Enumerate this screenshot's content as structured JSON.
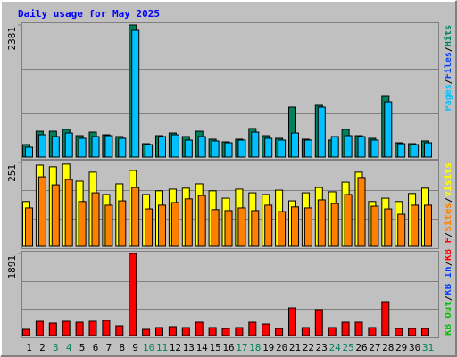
{
  "title": "Daily usage for May 2025",
  "legend_separator": "/",
  "chart_data": [
    {
      "type": "bar",
      "ylim": [
        0,
        2381
      ],
      "yticks": [
        2381
      ],
      "series": [
        {
          "name": "Hits",
          "color": "#00805c",
          "values": [
            225,
            466,
            466,
            500,
            386,
            450,
            402,
            370,
            2381,
            241,
            386,
            434,
            370,
            466,
            322,
            274,
            322,
            515,
            386,
            338,
            901,
            322,
            933,
            306,
            500,
            386,
            338,
            1094,
            257,
            241,
            290
          ]
        },
        {
          "name": "Files",
          "color": "#0040ff",
          "values": [
            null,
            null,
            null,
            null,
            null,
            null,
            null,
            null,
            null,
            null,
            null,
            null,
            null,
            null,
            null,
            null,
            null,
            null,
            null,
            null,
            null,
            null,
            null,
            null,
            null,
            null,
            null,
            null,
            null,
            null,
            null
          ]
        },
        {
          "name": "Pages",
          "color": "#00c0ff",
          "values": [
            177,
            402,
            370,
            434,
            338,
            370,
            386,
            338,
            2284,
            225,
            370,
            402,
            306,
            370,
            290,
            257,
            306,
            450,
            338,
            306,
            434,
            306,
            901,
            370,
            386,
            370,
            306,
            997,
            241,
            225,
            257
          ]
        }
      ]
    },
    {
      "type": "bar",
      "ylim": [
        0,
        251
      ],
      "yticks": [
        251
      ],
      "series": [
        {
          "name": "Visits",
          "color": "#ffff00",
          "values": [
            134,
            243,
            238,
            246,
            195,
            222,
            155,
            187,
            227,
            155,
            166,
            171,
            174,
            187,
            166,
            144,
            171,
            160,
            155,
            168,
            136,
            160,
            176,
            163,
            192,
            222,
            134,
            144,
            134,
            158,
            174
          ]
        },
        {
          "name": "Sites",
          "color": "#ff8000",
          "values": [
            115,
            208,
            184,
            200,
            134,
            160,
            123,
            136,
            176,
            112,
            123,
            131,
            142,
            152,
            110,
            107,
            115,
            107,
            123,
            104,
            118,
            115,
            139,
            128,
            155,
            206,
            120,
            112,
            96,
            123,
            123
          ]
        }
      ]
    },
    {
      "type": "bar",
      "ylim": [
        0,
        1891
      ],
      "yticks": [
        1891
      ],
      "categories": [
        "1",
        "2",
        "3",
        "4",
        "5",
        "6",
        "7",
        "8",
        "9",
        "10",
        "11",
        "12",
        "13",
        "14",
        "15",
        "16",
        "17",
        "18",
        "19",
        "20",
        "21",
        "22",
        "23",
        "24",
        "25",
        "26",
        "27",
        "28",
        "29",
        "30",
        "31"
      ],
      "category_colors": [
        "#000000",
        "#000000",
        "#00805c",
        "#00805c",
        "#000000",
        "#000000",
        "#000000",
        "#000000",
        "#000000",
        "#00805c",
        "#00805c",
        "#000000",
        "#000000",
        "#000000",
        "#000000",
        "#000000",
        "#00805c",
        "#00805c",
        "#000000",
        "#000000",
        "#000000",
        "#000000",
        "#000000",
        "#00805c",
        "#00805c",
        "#000000",
        "#000000",
        "#000000",
        "#000000",
        "#000000",
        "#00805c"
      ],
      "series": [
        {
          "name": "KB Out",
          "color": "#00c000",
          "values": [
            null,
            null,
            null,
            null,
            null,
            null,
            null,
            null,
            null,
            null,
            null,
            null,
            null,
            null,
            null,
            null,
            null,
            null,
            null,
            null,
            null,
            null,
            null,
            null,
            null,
            null,
            null,
            null,
            null,
            null,
            null
          ]
        },
        {
          "name": "KB In",
          "color": "#0040ff",
          "values": [
            null,
            null,
            null,
            null,
            null,
            null,
            null,
            null,
            null,
            null,
            null,
            null,
            null,
            null,
            null,
            null,
            null,
            null,
            null,
            null,
            null,
            null,
            null,
            null,
            null,
            null,
            null,
            null,
            null,
            null,
            null
          ]
        },
        {
          "name": "KB F",
          "color": "#ff0000",
          "values": [
            144,
            329,
            288,
            329,
            308,
            329,
            349,
            226,
            1891,
            144,
            185,
            206,
            185,
            308,
            185,
            164,
            185,
            308,
            267,
            164,
            637,
            185,
            596,
            185,
            308,
            308,
            185,
            781,
            164,
            164,
            164
          ]
        }
      ]
    }
  ]
}
